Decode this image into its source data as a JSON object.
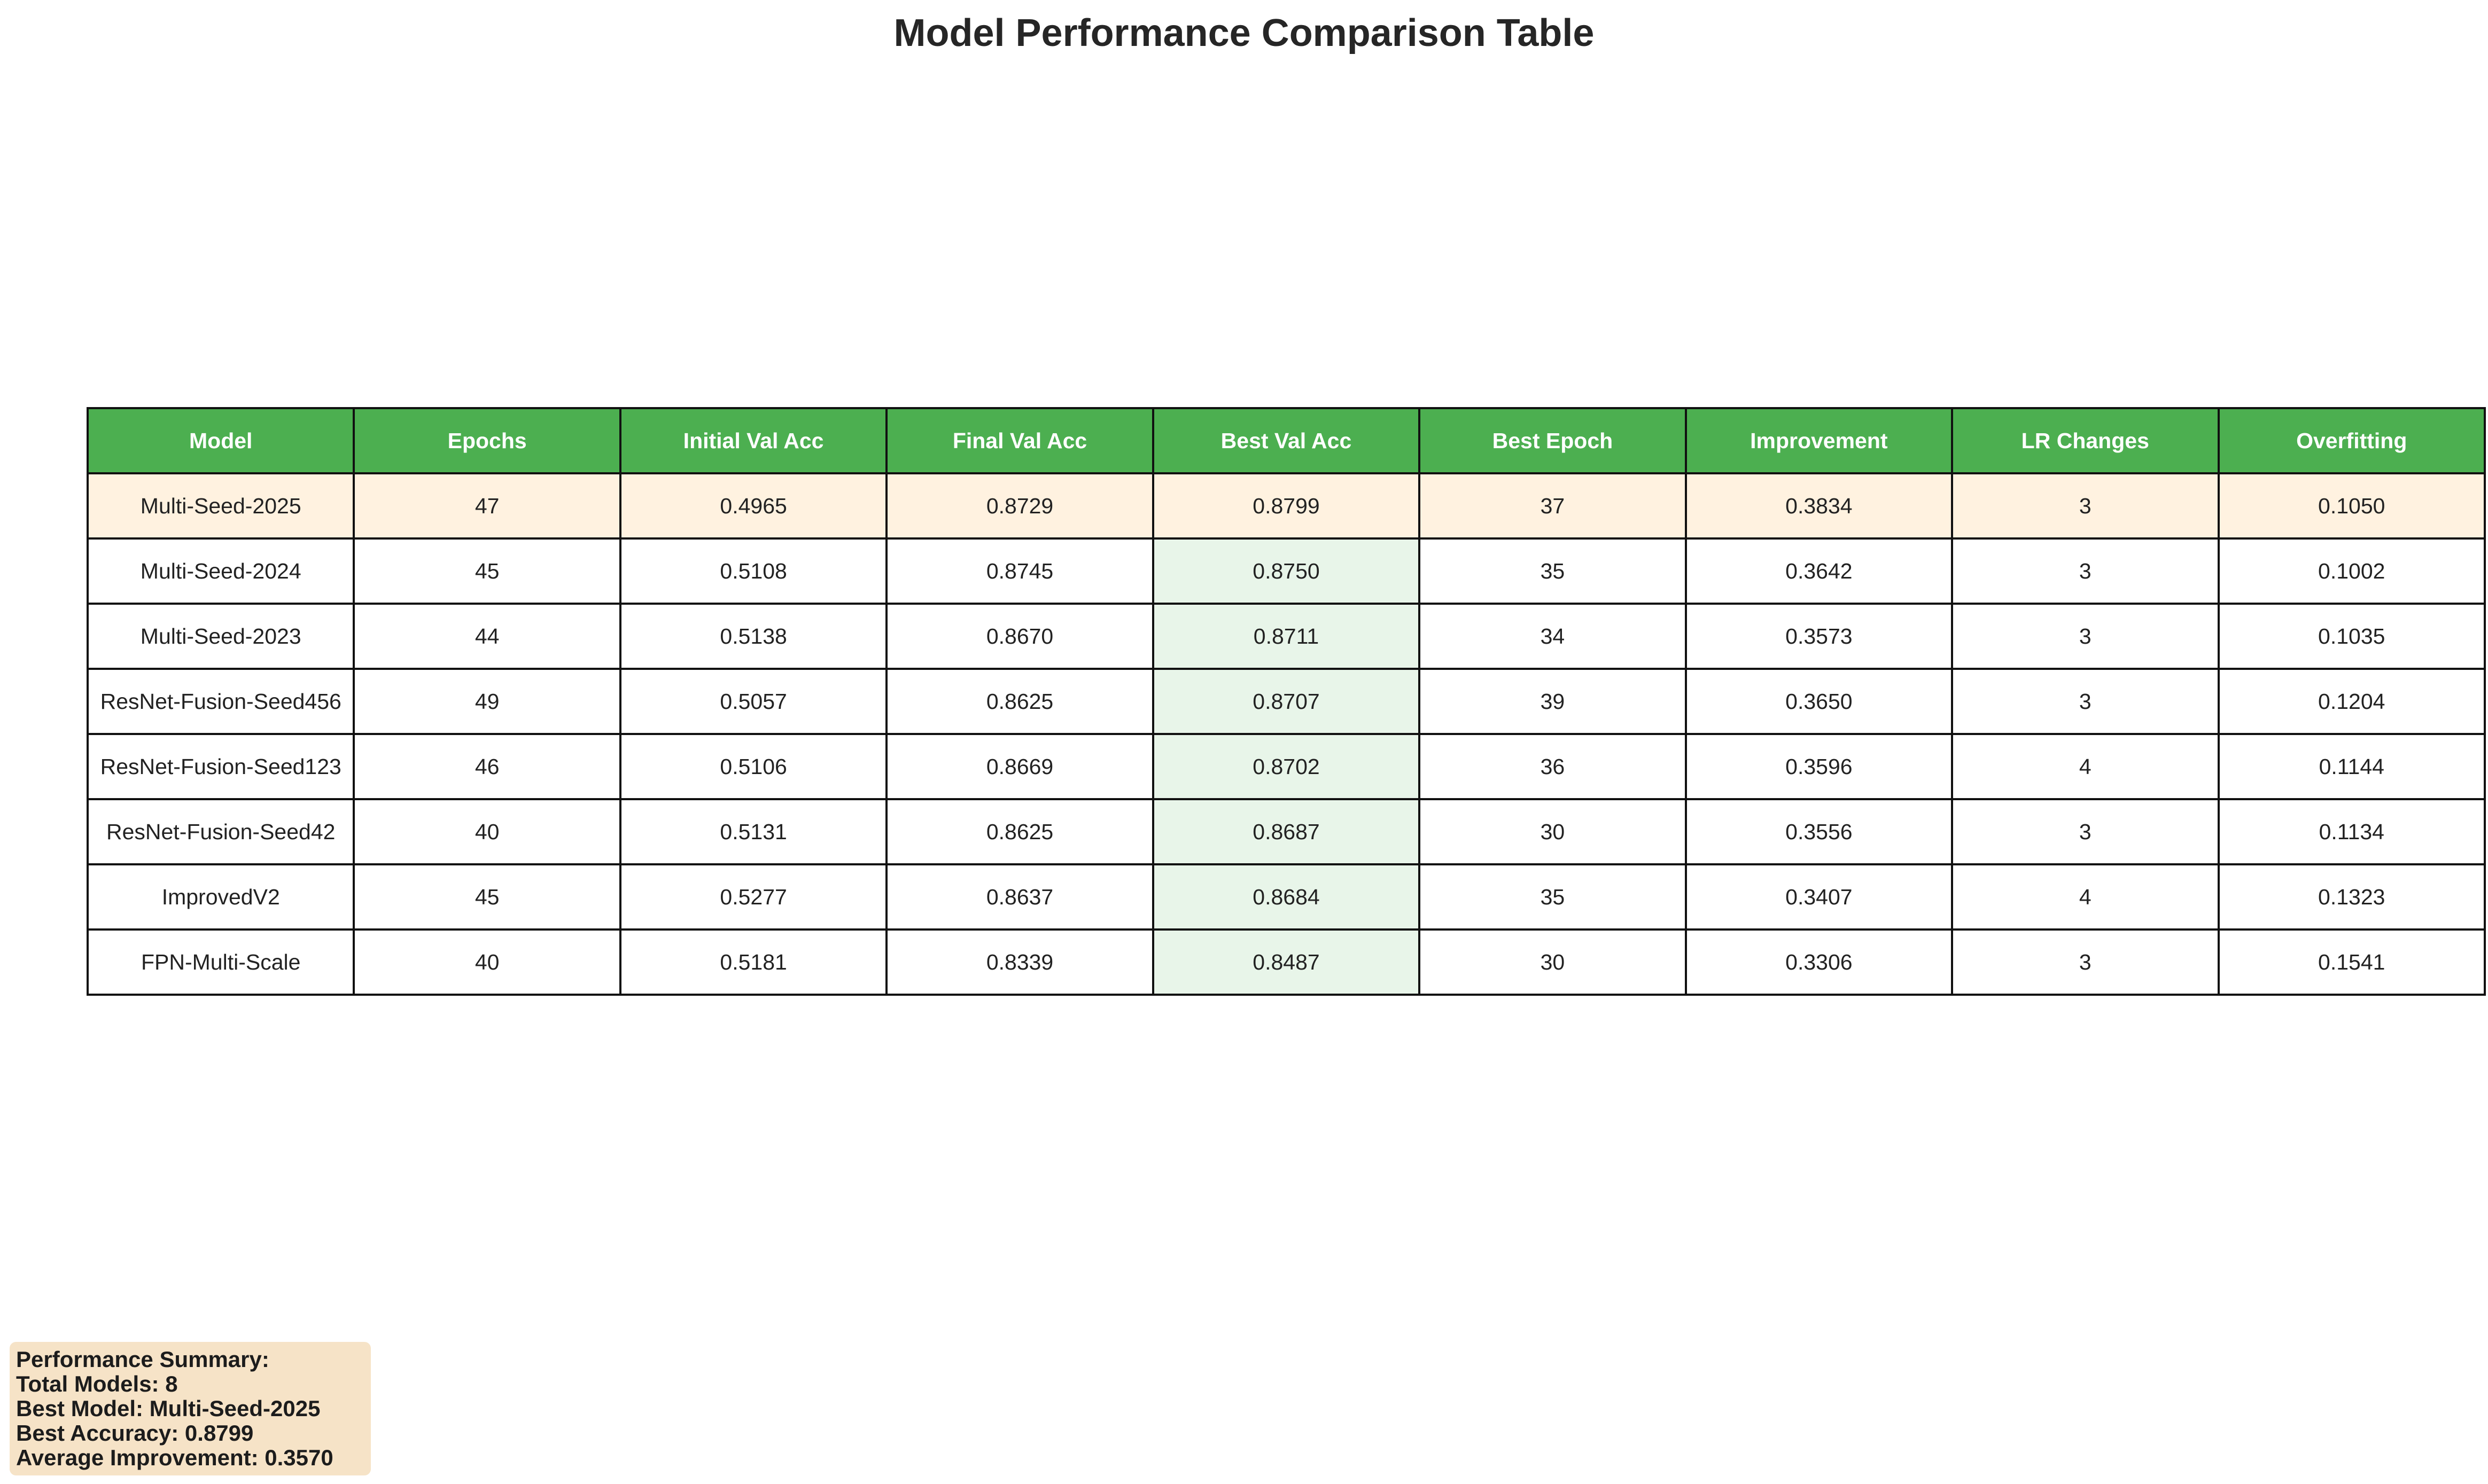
{
  "title": "Model Performance Comparison Table",
  "colors": {
    "header_bg": "#4CAF50",
    "header_text": "#ffffff",
    "best_row_bg": "#FFF2E0",
    "best_col_bg": "#E8F5E9",
    "summary_bg": "#F6E3C7"
  },
  "chart_data": {
    "type": "table",
    "title": "Model Performance Comparison Table",
    "columns": [
      "Model",
      "Epochs",
      "Initial Val Acc",
      "Final Val Acc",
      "Best Val Acc",
      "Best Epoch",
      "Improvement",
      "LR Changes",
      "Overfitting"
    ],
    "rows": [
      [
        "Multi-Seed-2025",
        "47",
        "0.4965",
        "0.8729",
        "0.8799",
        "37",
        "0.3834",
        "3",
        "0.1050"
      ],
      [
        "Multi-Seed-2024",
        "45",
        "0.5108",
        "0.8745",
        "0.8750",
        "35",
        "0.3642",
        "3",
        "0.1002"
      ],
      [
        "Multi-Seed-2023",
        "44",
        "0.5138",
        "0.8670",
        "0.8711",
        "34",
        "0.3573",
        "3",
        "0.1035"
      ],
      [
        "ResNet-Fusion-Seed456",
        "49",
        "0.5057",
        "0.8625",
        "0.8707",
        "39",
        "0.3650",
        "3",
        "0.1204"
      ],
      [
        "ResNet-Fusion-Seed123",
        "46",
        "0.5106",
        "0.8669",
        "0.8702",
        "36",
        "0.3596",
        "4",
        "0.1144"
      ],
      [
        "ResNet-Fusion-Seed42",
        "40",
        "0.5131",
        "0.8625",
        "0.8687",
        "30",
        "0.3556",
        "3",
        "0.1134"
      ],
      [
        "ImprovedV2",
        "45",
        "0.5277",
        "0.8637",
        "0.8684",
        "35",
        "0.3407",
        "4",
        "0.1323"
      ],
      [
        "FPN-Multi-Scale",
        "40",
        "0.5181",
        "0.8339",
        "0.8487",
        "30",
        "0.3306",
        "3",
        "0.1541"
      ]
    ],
    "highlighted_row": 0,
    "highlighted_column": 4
  },
  "summary": {
    "heading": "Performance Summary:",
    "total_models": "Total Models: 8",
    "best_model": "Best Model: Multi-Seed-2025",
    "best_accuracy": "Best Accuracy: 0.8799",
    "average_improvement": "Average Improvement: 0.3570"
  }
}
